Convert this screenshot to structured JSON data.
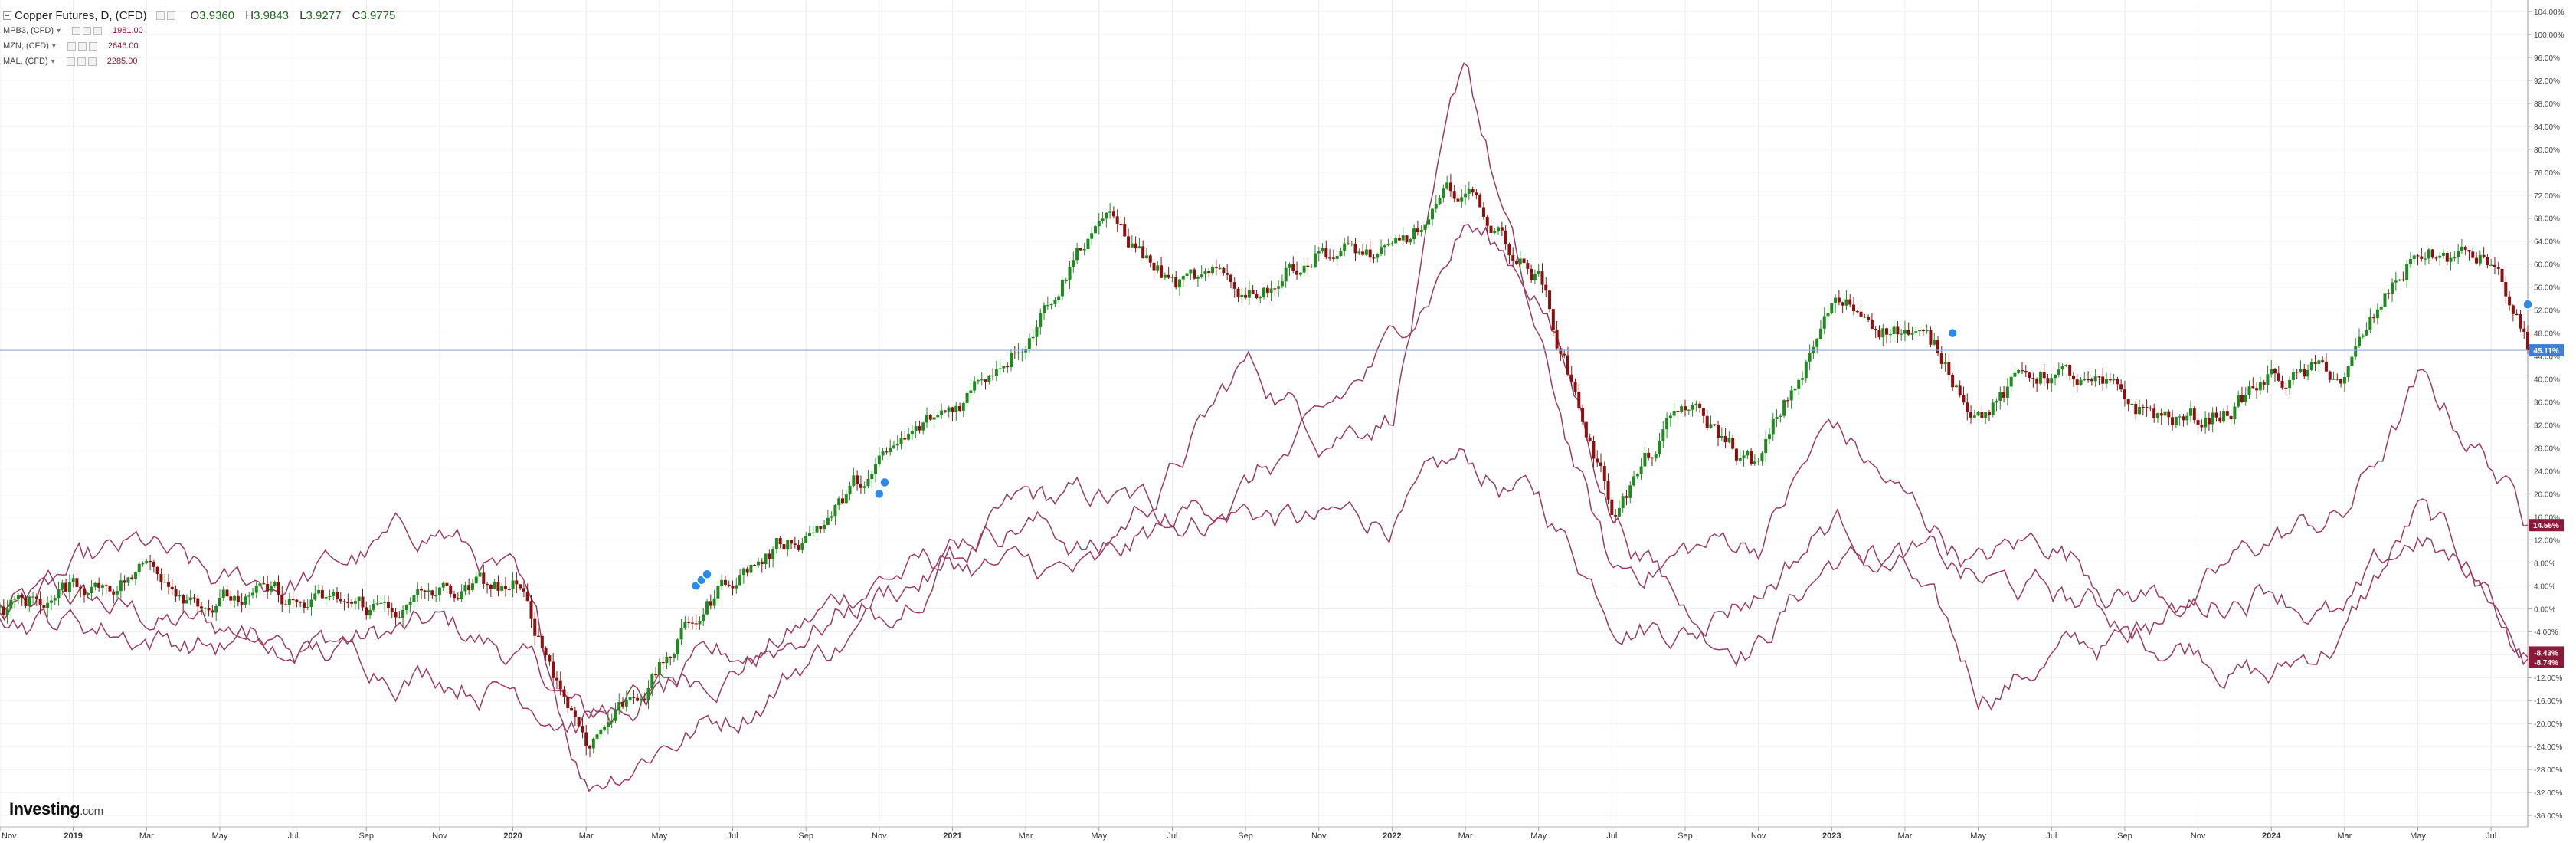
{
  "legend": {
    "main": {
      "label": "Copper Futures, D, (CFD)",
      "o_label": "O",
      "o": "3.9360",
      "h_label": "H",
      "h": "3.9843",
      "l_label": "L",
      "l": "3.9277",
      "c_label": "C",
      "c": "3.9775"
    },
    "series": [
      {
        "label": "MPB3, (CFD)",
        "value": "1981.00"
      },
      {
        "label": "MZN, (CFD)",
        "value": "2646.00"
      },
      {
        "label": "MAL, (CFD)",
        "value": "2285.00"
      }
    ]
  },
  "logo": {
    "text": "Investing",
    "suffix": ".com"
  },
  "colors": {
    "up": "#1f8a1f",
    "down": "#8b1010",
    "line": "#9c3a62",
    "grid": "#ececec",
    "last_price_line": "#8aaee0",
    "badge_blue": "#3f7fd9",
    "badge_maroon": "#8b1a3a",
    "marker": "#2b8be8"
  },
  "chart_data": {
    "type": "line",
    "title": "Copper Futures, D, (CFD)",
    "yaxis_unit": "percent change",
    "ylim": [
      -38,
      106
    ],
    "ytick_labels": [
      "104.00%",
      "100.00%",
      "96.00%",
      "92.00%",
      "88.00%",
      "84.00%",
      "80.00%",
      "76.00%",
      "72.00%",
      "68.00%",
      "64.00%",
      "60.00%",
      "56.00%",
      "52.00%",
      "48.00%",
      "44.00%",
      "40.00%",
      "36.00%",
      "32.00%",
      "28.00%",
      "24.00%",
      "20.00%",
      "16.00%",
      "12.00%",
      "8.00%",
      "4.00%",
      "0.00%",
      "-4.00%",
      "-8.00%",
      "-12.00%",
      "-16.00%",
      "-20.00%",
      "-24.00%",
      "-28.00%",
      "-32.00%",
      "-36.00%"
    ],
    "xlim": [
      "2018-11",
      "2024-08"
    ],
    "xtick_labels": [
      "Nov",
      "2019",
      "Mar",
      "May",
      "Jul",
      "Sep",
      "Nov",
      "2020",
      "Mar",
      "May",
      "Jul",
      "Sep",
      "Nov",
      "2021",
      "Mar",
      "May",
      "Jul",
      "Sep",
      "Nov",
      "2022",
      "Mar",
      "May",
      "Jul",
      "Sep",
      "Nov",
      "2023",
      "Mar",
      "May",
      "Jul",
      "Sep",
      "Nov",
      "2024",
      "Mar",
      "May",
      "Jul"
    ],
    "series": [
      {
        "name": "Copper Futures, D, (CFD)",
        "style": "candles",
        "last_label": "45.11%",
        "x": [
          "2018-11",
          "2019-01",
          "2019-03",
          "2019-05",
          "2019-07",
          "2019-09",
          "2019-11",
          "2020-01",
          "2020-03",
          "2020-05",
          "2020-07",
          "2020-09",
          "2020-11",
          "2021-01",
          "2021-03",
          "2021-05",
          "2021-07",
          "2021-09",
          "2021-11",
          "2022-01",
          "2022-03",
          "2022-05",
          "2022-07",
          "2022-09",
          "2022-11",
          "2023-01",
          "2023-03",
          "2023-05",
          "2023-07",
          "2023-09",
          "2023-11",
          "2024-01",
          "2024-03",
          "2024-05",
          "2024-07",
          "2024-08"
        ],
        "y": [
          0,
          3,
          8,
          3,
          0,
          -1,
          2,
          3,
          -22,
          -10,
          6,
          14,
          24,
          34,
          50,
          70,
          56,
          54,
          64,
          60,
          72,
          58,
          18,
          34,
          24,
          52,
          50,
          36,
          42,
          34,
          32,
          40,
          40,
          62,
          60,
          45
        ]
      },
      {
        "name": "MPB3, (CFD)",
        "style": "line",
        "last_label": "-8.43%",
        "x": [
          "2018-11",
          "2019-01",
          "2019-03",
          "2019-05",
          "2019-07",
          "2019-09",
          "2019-11",
          "2020-01",
          "2020-03",
          "2020-05",
          "2020-07",
          "2020-09",
          "2020-11",
          "2021-01",
          "2021-03",
          "2021-05",
          "2021-07",
          "2021-09",
          "2021-11",
          "2022-01",
          "2022-03",
          "2022-05",
          "2022-07",
          "2022-09",
          "2022-11",
          "2023-01",
          "2023-03",
          "2023-05",
          "2023-07",
          "2023-09",
          "2023-11",
          "2024-01",
          "2024-03",
          "2024-05",
          "2024-07",
          "2024-08"
        ],
        "y": [
          0,
          1,
          -2,
          -4,
          -4,
          -5,
          -4,
          -8,
          -20,
          -14,
          -9,
          -3,
          6,
          8,
          17,
          18,
          16,
          18,
          14,
          16,
          24,
          18,
          1,
          -2,
          -4,
          9,
          6,
          -15,
          -8,
          -6,
          -5,
          -12,
          -4,
          16,
          2,
          -8.43
        ]
      },
      {
        "name": "MZN, (CFD)",
        "style": "line",
        "last_label": "14.55%",
        "x": [
          "2018-11",
          "2019-01",
          "2019-03",
          "2019-05",
          "2019-07",
          "2019-09",
          "2019-11",
          "2020-01",
          "2020-03",
          "2020-05",
          "2020-07",
          "2020-09",
          "2020-11",
          "2021-01",
          "2021-03",
          "2021-05",
          "2021-07",
          "2021-09",
          "2021-11",
          "2022-01",
          "2022-03",
          "2022-05",
          "2022-07",
          "2022-09",
          "2022-11",
          "2023-01",
          "2023-03",
          "2023-05",
          "2023-07",
          "2023-09",
          "2023-11",
          "2024-01",
          "2024-03",
          "2024-05",
          "2024-07",
          "2024-08"
        ],
        "y": [
          0,
          5,
          9,
          2,
          5,
          9,
          14,
          4,
          -30,
          -22,
          -18,
          -8,
          -2,
          14,
          17,
          10,
          24,
          42,
          32,
          36,
          94,
          44,
          5,
          10,
          12,
          32,
          18,
          8,
          12,
          4,
          2,
          12,
          16,
          38,
          26,
          14.55
        ]
      },
      {
        "name": "MAL, (CFD)",
        "style": "line",
        "last_label": "-8.74%",
        "x": [
          "2018-11",
          "2019-01",
          "2019-03",
          "2019-05",
          "2019-07",
          "2019-09",
          "2019-11",
          "2020-01",
          "2020-03",
          "2020-05",
          "2020-07",
          "2020-09",
          "2020-11",
          "2021-01",
          "2021-03",
          "2021-05",
          "2021-07",
          "2021-09",
          "2021-11",
          "2022-01",
          "2022-03",
          "2022-05",
          "2022-07",
          "2022-09",
          "2022-11",
          "2023-01",
          "2023-03",
          "2023-05",
          "2023-07",
          "2023-09",
          "2023-11",
          "2024-01",
          "2024-03",
          "2024-05",
          "2024-07",
          "2024-08"
        ],
        "y": [
          0,
          -2,
          -4,
          -6,
          -8,
          -9,
          -10,
          -13,
          -18,
          -16,
          -10,
          -3,
          3,
          8,
          6,
          5,
          14,
          22,
          30,
          45,
          68,
          56,
          18,
          0,
          4,
          16,
          10,
          4,
          2,
          -2,
          0,
          6,
          -2,
          12,
          2,
          -8.74
        ]
      }
    ]
  }
}
